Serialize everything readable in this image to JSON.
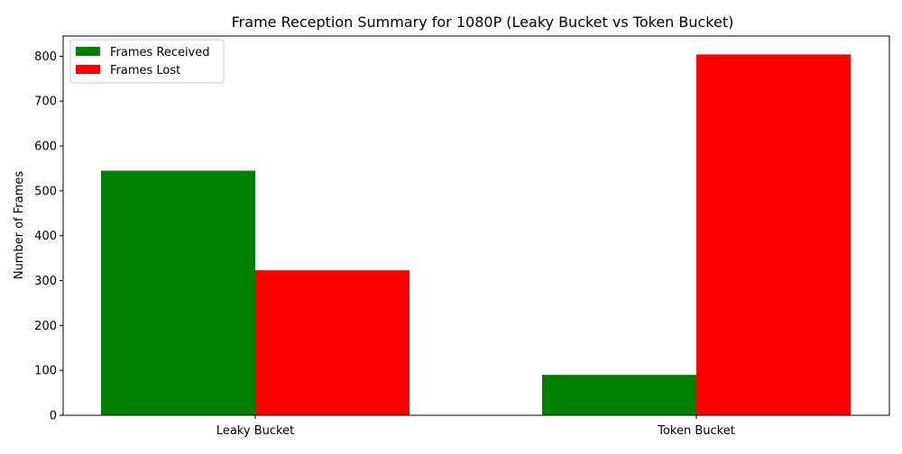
{
  "chart_data": {
    "type": "bar",
    "title": "Frame Reception Summary for 1080P (Leaky Bucket vs Token Bucket)",
    "xlabel": "",
    "ylabel": "Number of Frames",
    "categories": [
      "Leaky Bucket",
      "Token Bucket"
    ],
    "series": [
      {
        "name": "Frames Received",
        "values": [
          545,
          90
        ],
        "color": "#008000"
      },
      {
        "name": "Frames Lost",
        "values": [
          323,
          804
        ],
        "color": "#ff0000"
      }
    ],
    "ylim": [
      0,
      845
    ],
    "yticks": [
      0,
      100,
      200,
      300,
      400,
      500,
      600,
      700,
      800
    ],
    "grid": false,
    "legend_position": "top-left"
  }
}
